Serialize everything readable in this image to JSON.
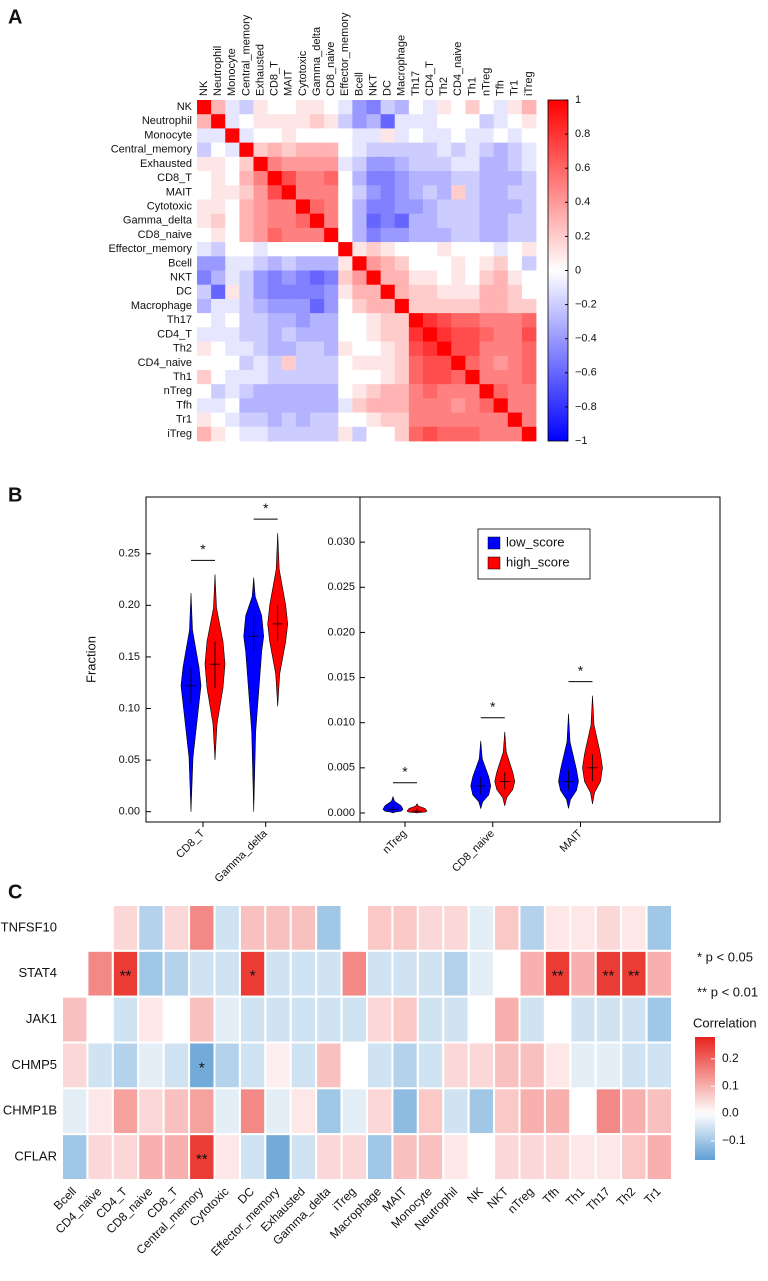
{
  "chart_data": [
    {
      "type": "heatmap",
      "panel": "A",
      "rows": [
        "NK",
        "Neutrophil",
        "Monocyte",
        "Central_memory",
        "Exhausted",
        "CD8_T",
        "MAIT",
        "Cytotoxic",
        "Gamma_delta",
        "CD8_naive",
        "Effector_memory",
        "Bcell",
        "NKT",
        "DC",
        "Macrophage",
        "Th17",
        "CD4_T",
        "Th2",
        "CD4_naive",
        "Th1",
        "nTreg",
        "Tfh",
        "Tr1",
        "iTreg"
      ],
      "columns": [
        "NK",
        "Neutrophil",
        "Monocyte",
        "Central_memory",
        "Exhausted",
        "CD8_T",
        "MAIT",
        "Cytotoxic",
        "Gamma_delta",
        "CD8_naive",
        "Effector_memory",
        "Bcell",
        "NKT",
        "DC",
        "Macrophage",
        "Th17",
        "CD4_T",
        "Th2",
        "CD4_naive",
        "Th1",
        "nTreg",
        "Tfh",
        "Tr1",
        "iTreg"
      ],
      "values": [
        [
          1,
          0.3,
          -0.1,
          -0.2,
          0.1,
          0,
          0,
          0.1,
          0.1,
          0,
          -0.1,
          -0.4,
          -0.5,
          -0.2,
          -0.3,
          0,
          -0.1,
          0.1,
          0,
          0.2,
          0,
          -0.1,
          0.1,
          0.3
        ],
        [
          0.3,
          1,
          -0.1,
          0,
          0.1,
          0.1,
          0.1,
          0.1,
          0.2,
          0.1,
          -0.2,
          -0.4,
          -0.3,
          -0.6,
          -0.1,
          -0.1,
          -0.1,
          0,
          0,
          0,
          -0.2,
          -0.1,
          0,
          0.1
        ],
        [
          -0.1,
          -0.1,
          1,
          -0.1,
          0,
          0,
          0.1,
          0,
          0,
          0,
          0,
          -0.1,
          -0.1,
          0.1,
          -0.1,
          0,
          -0.1,
          -0.1,
          0,
          -0.1,
          -0.1,
          0,
          -0.1,
          0
        ],
        [
          -0.2,
          0,
          -0.1,
          1,
          0.2,
          0.3,
          0.2,
          0.3,
          0.3,
          0.3,
          0,
          -0.1,
          -0.2,
          -0.2,
          -0.2,
          -0.2,
          -0.2,
          -0.1,
          -0.2,
          -0.1,
          -0.2,
          -0.3,
          -0.2,
          -0.1
        ],
        [
          0.1,
          0.1,
          0,
          0.2,
          1,
          0.5,
          0.4,
          0.4,
          0.4,
          0.4,
          -0.1,
          -0.2,
          -0.4,
          -0.4,
          -0.3,
          -0.2,
          -0.2,
          -0.2,
          -0.1,
          -0.1,
          -0.3,
          -0.3,
          -0.2,
          -0.1
        ],
        [
          0,
          0.1,
          0,
          0.3,
          0.5,
          1,
          0.7,
          0.5,
          0.5,
          0.6,
          0,
          -0.3,
          -0.5,
          -0.5,
          -0.4,
          -0.3,
          -0.3,
          -0.3,
          -0.2,
          -0.2,
          -0.3,
          -0.3,
          -0.3,
          -0.2
        ],
        [
          0,
          0.1,
          0.1,
          0.2,
          0.4,
          0.7,
          1,
          0.5,
          0.5,
          0.5,
          0,
          -0.2,
          -0.4,
          -0.5,
          -0.4,
          -0.3,
          -0.2,
          -0.3,
          0.2,
          -0.2,
          -0.3,
          -0.3,
          -0.2,
          -0.2
        ],
        [
          0.1,
          0.1,
          0,
          0.3,
          0.4,
          0.5,
          0.5,
          1,
          0.6,
          0.5,
          0,
          -0.3,
          -0.5,
          -0.5,
          -0.4,
          -0.4,
          -0.3,
          -0.2,
          -0.2,
          -0.2,
          -0.3,
          -0.3,
          -0.3,
          -0.2
        ],
        [
          0.1,
          0.2,
          0,
          0.3,
          0.4,
          0.5,
          0.5,
          0.6,
          1,
          0.5,
          0,
          -0.3,
          -0.6,
          -0.5,
          -0.6,
          -0.3,
          -0.3,
          -0.2,
          -0.2,
          -0.2,
          -0.3,
          -0.3,
          -0.2,
          -0.2
        ],
        [
          0,
          0.1,
          0,
          0.3,
          0.4,
          0.6,
          0.5,
          0.5,
          0.5,
          1,
          0,
          -0.3,
          -0.5,
          -0.4,
          -0.4,
          -0.3,
          -0.3,
          -0.3,
          -0.2,
          -0.2,
          -0.3,
          -0.3,
          -0.2,
          -0.2
        ],
        [
          -0.1,
          -0.2,
          0,
          0,
          -0.1,
          0,
          0,
          0,
          0,
          0,
          1,
          0.1,
          0.2,
          0.1,
          0,
          0,
          0,
          0.1,
          0,
          0,
          0,
          -0.1,
          0,
          0.1
        ],
        [
          -0.4,
          -0.4,
          -0.1,
          -0.1,
          -0.2,
          -0.3,
          -0.2,
          -0.3,
          -0.3,
          -0.3,
          0.1,
          1,
          0.4,
          0.3,
          0.2,
          0,
          0,
          0,
          0.1,
          0,
          0.1,
          0.2,
          0,
          -0.2
        ],
        [
          -0.5,
          -0.3,
          -0.1,
          -0.2,
          -0.4,
          -0.5,
          -0.4,
          -0.5,
          -0.6,
          -0.5,
          0.2,
          0.4,
          1,
          0.3,
          0.3,
          0.1,
          0.1,
          0,
          0.1,
          0,
          0.2,
          0.3,
          0.1,
          0
        ],
        [
          -0.2,
          -0.6,
          0.1,
          -0.2,
          -0.4,
          -0.5,
          -0.5,
          -0.5,
          -0.5,
          -0.4,
          0.1,
          0.3,
          0.3,
          1,
          0.3,
          0.2,
          0.2,
          0.1,
          0.1,
          0.1,
          0.3,
          0.3,
          0.2,
          0
        ],
        [
          -0.3,
          -0.1,
          -0.1,
          -0.2,
          -0.3,
          -0.4,
          -0.4,
          -0.4,
          -0.6,
          -0.4,
          0,
          0.2,
          0.3,
          0.3,
          1,
          0.2,
          0.2,
          0.2,
          0.2,
          0.2,
          0.3,
          0.3,
          0.2,
          0.2
        ],
        [
          0,
          -0.1,
          0,
          -0.2,
          -0.2,
          -0.3,
          -0.3,
          -0.4,
          -0.3,
          -0.3,
          0,
          0,
          0.1,
          0.2,
          0.2,
          1,
          0.8,
          0.7,
          0.6,
          0.6,
          0.5,
          0.5,
          0.5,
          0.6
        ],
        [
          -0.1,
          -0.1,
          -0.1,
          -0.2,
          -0.2,
          -0.3,
          -0.2,
          -0.3,
          -0.3,
          -0.3,
          0,
          0,
          0.1,
          0.2,
          0.2,
          0.8,
          1,
          0.8,
          0.7,
          0.7,
          0.6,
          0.5,
          0.5,
          0.7
        ],
        [
          0.1,
          0,
          -0.1,
          -0.1,
          -0.2,
          -0.3,
          -0.3,
          -0.2,
          -0.2,
          -0.3,
          0.1,
          0,
          0,
          0.1,
          0.2,
          0.7,
          0.8,
          1,
          0.7,
          0.7,
          0.5,
          0.5,
          0.5,
          0.6
        ],
        [
          0,
          0,
          0,
          -0.2,
          -0.1,
          -0.2,
          0.2,
          -0.2,
          -0.2,
          -0.2,
          0,
          0.1,
          0.1,
          0.1,
          0.2,
          0.6,
          0.7,
          0.7,
          1,
          0.6,
          0.5,
          0.4,
          0.5,
          0.6
        ],
        [
          0.2,
          0,
          -0.1,
          -0.1,
          -0.1,
          -0.2,
          -0.2,
          -0.2,
          -0.2,
          -0.2,
          0,
          0,
          0,
          0.1,
          0.2,
          0.6,
          0.7,
          0.7,
          0.6,
          1,
          0.5,
          0.5,
          0.5,
          0.6
        ],
        [
          0,
          -0.2,
          -0.1,
          -0.2,
          -0.3,
          -0.3,
          -0.3,
          -0.3,
          -0.3,
          -0.3,
          0,
          0.1,
          0.2,
          0.3,
          0.3,
          0.5,
          0.6,
          0.5,
          0.5,
          0.5,
          1,
          0.6,
          0.5,
          0.5
        ],
        [
          -0.1,
          -0.1,
          0,
          -0.3,
          -0.3,
          -0.3,
          -0.3,
          -0.3,
          -0.3,
          -0.3,
          -0.1,
          0.2,
          0.3,
          0.3,
          0.3,
          0.5,
          0.5,
          0.5,
          0.4,
          0.5,
          0.6,
          1,
          0.5,
          0.5
        ],
        [
          0.1,
          0,
          -0.1,
          -0.2,
          -0.2,
          -0.3,
          -0.2,
          -0.3,
          -0.2,
          -0.2,
          0,
          0,
          0.1,
          0.2,
          0.2,
          0.5,
          0.5,
          0.5,
          0.5,
          0.5,
          0.5,
          0.5,
          1,
          0.5
        ],
        [
          0.3,
          0.1,
          0,
          -0.1,
          -0.1,
          -0.2,
          -0.2,
          -0.2,
          -0.2,
          -0.2,
          0.1,
          -0.2,
          0,
          0,
          0.2,
          0.6,
          0.7,
          0.6,
          0.6,
          0.6,
          0.5,
          0.5,
          0.5,
          1
        ]
      ],
      "zlim": [
        -1,
        1
      ],
      "zticks": [
        1,
        0.8,
        0.6,
        0.4,
        0.2,
        0,
        {
          "value": -0.2,
          "label": "−0.2"
        },
        {
          "value": -0.4,
          "label": "−0.4"
        },
        {
          "value": -0.6,
          "label": "−0.6"
        },
        {
          "value": -0.8,
          "label": "−0.8"
        },
        {
          "value": -1,
          "label": "−1"
        }
      ],
      "colors": [
        "#0000ff",
        "#ffffff",
        "#ff0000"
      ]
    },
    {
      "type": "violin",
      "panel": "B",
      "ylabel": "Fraction",
      "categories": [
        "CD8_T",
        "Gamma_delta"
      ],
      "series": [
        {
          "color": "#0000ff",
          "min": [
            0,
            0
          ],
          "q1": [
            0.105,
            0.155
          ],
          "median": [
            0.122,
            0.17
          ],
          "q3": [
            0.14,
            0.19
          ],
          "max": [
            0.212,
            0.227
          ]
        },
        {
          "color": "#ff0000",
          "min": [
            0.05,
            0.102
          ],
          "q1": [
            0.12,
            0.165
          ],
          "median": [
            0.143,
            0.182
          ],
          "q3": [
            0.165,
            0.2
          ],
          "max": [
            0.23,
            0.27
          ]
        }
      ],
      "annotations": [
        "*",
        "*"
      ],
      "ylim": [
        -0.01,
        0.305
      ],
      "yticks": [
        {
          "value": 0,
          "label": "0.00"
        },
        0.05,
        {
          "value": 0.1,
          "label": "0.10"
        },
        0.15,
        {
          "value": 0.2,
          "label": "0.20"
        },
        0.25
      ]
    },
    {
      "type": "violin",
      "categories": [
        "nTreg",
        "CD8_naive",
        "MAIT"
      ],
      "series": [
        {
          "name": "low_score",
          "color": "#0000ff",
          "min": [
            0,
            0.0005,
            0.0005
          ],
          "q1": [
            0.0002,
            0.002,
            0.0025
          ],
          "median": [
            0.0004,
            0.003,
            0.0035
          ],
          "q3": [
            0.0008,
            0.004,
            0.0048
          ],
          "max": [
            0.0018,
            0.008,
            0.011
          ]
        },
        {
          "name": "high_score",
          "color": "#ff0000",
          "min": [
            0,
            0.0008,
            0.001
          ],
          "q1": [
            0.0001,
            0.0026,
            0.0035
          ],
          "median": [
            0.0002,
            0.0035,
            0.005
          ],
          "q3": [
            0.0005,
            0.0045,
            0.0065
          ],
          "max": [
            0.001,
            0.009,
            0.013
          ]
        }
      ],
      "annotations": [
        "*",
        "*",
        "*"
      ],
      "ylim": [
        -0.001,
        0.035
      ],
      "yticks": [
        {
          "value": 0,
          "label": "0.000"
        },
        0.005,
        {
          "value": 0.01,
          "label": "0.010"
        },
        0.015,
        {
          "value": 0.02,
          "label": "0.020"
        },
        0.025,
        {
          "value": 0.03,
          "label": "0.030"
        }
      ],
      "legend": "upper-right"
    },
    {
      "type": "heatmap",
      "panel": "C",
      "rows": [
        "TNFSF10",
        "STAT4",
        "JAK1",
        "CHMP5",
        "CHMP1B",
        "CFLAR"
      ],
      "columns": [
        "Bcell",
        "CD4_naive",
        "CD4_T",
        "CD8_naive",
        "CD8_T",
        "Central_memory",
        "Cytotoxic",
        "DC",
        "Effector_memory",
        "Exhausted",
        "Gamma_delta",
        "iTreg",
        "Macrophage",
        "MAIT",
        "Monocyte",
        "Neutrophil",
        "NK",
        "NKT",
        "nTreg",
        "Tfh",
        "Th1",
        "Th17",
        "Th2",
        "Tr1"
      ],
      "values": [
        [
          0,
          0,
          0.05,
          -0.08,
          0.05,
          0.15,
          -0.05,
          0.08,
          0.08,
          0.08,
          -0.1,
          0,
          0.07,
          0.07,
          0.05,
          0.05,
          -0.03,
          0.07,
          -0.08,
          0.03,
          0.03,
          0.05,
          0.03,
          -0.1
        ],
        [
          0,
          0.15,
          0.25,
          -0.1,
          -0.08,
          -0.05,
          -0.05,
          0.25,
          -0.05,
          -0.05,
          -0.05,
          0.15,
          -0.05,
          -0.05,
          -0.05,
          -0.08,
          -0.03,
          0,
          0.1,
          0.25,
          0.1,
          0.25,
          0.25,
          0.1
        ],
        [
          0.08,
          0,
          -0.05,
          0.03,
          0,
          0.08,
          -0.03,
          -0.05,
          -0.05,
          -0.05,
          -0.05,
          -0.05,
          0.05,
          0.07,
          -0.05,
          -0.05,
          0,
          0.1,
          -0.05,
          0,
          -0.05,
          -0.05,
          -0.05,
          -0.1
        ],
        [
          0.05,
          -0.05,
          -0.08,
          -0.03,
          -0.05,
          -0.15,
          -0.08,
          -0.05,
          0.02,
          -0.05,
          0.08,
          0,
          -0.05,
          -0.08,
          -0.05,
          0.05,
          0.05,
          0.08,
          0.08,
          0.03,
          -0.03,
          -0.03,
          -0.05,
          -0.05
        ],
        [
          -0.03,
          0.03,
          0.12,
          0.05,
          0.08,
          0.12,
          -0.03,
          0.15,
          -0.03,
          0.03,
          -0.1,
          -0.03,
          0.05,
          -0.12,
          0.07,
          -0.05,
          -0.1,
          0.07,
          0.1,
          0.1,
          0,
          0.15,
          0.1,
          0.08
        ],
        [
          -0.1,
          0.05,
          0.05,
          0.1,
          0.1,
          0.25,
          0.03,
          -0.05,
          -0.15,
          -0.05,
          0.05,
          0.05,
          -0.1,
          0.08,
          0.08,
          0.03,
          0,
          0.05,
          0.05,
          0.05,
          0.03,
          0.03,
          0.07,
          0.1
        ]
      ],
      "stars": [
        [
          null,
          null,
          null,
          null,
          null,
          null,
          null,
          null,
          null,
          null,
          null,
          null,
          null,
          null,
          null,
          null,
          null,
          null,
          null,
          null,
          null,
          null,
          null,
          null
        ],
        [
          null,
          null,
          "**",
          null,
          null,
          null,
          null,
          "*",
          null,
          null,
          null,
          null,
          null,
          null,
          null,
          null,
          null,
          null,
          null,
          "**",
          null,
          "**",
          "**",
          null
        ],
        [
          null,
          null,
          null,
          null,
          null,
          null,
          null,
          null,
          null,
          null,
          null,
          null,
          null,
          null,
          null,
          null,
          null,
          null,
          null,
          null,
          null,
          null,
          null,
          null
        ],
        [
          null,
          null,
          null,
          null,
          null,
          "*",
          null,
          null,
          null,
          null,
          null,
          null,
          null,
          null,
          null,
          null,
          null,
          null,
          null,
          null,
          null,
          null,
          null,
          null
        ],
        [
          null,
          null,
          null,
          null,
          null,
          null,
          null,
          null,
          null,
          null,
          null,
          null,
          null,
          null,
          null,
          null,
          null,
          null,
          null,
          null,
          null,
          null,
          null,
          null
        ],
        [
          null,
          null,
          null,
          null,
          null,
          "**",
          null,
          null,
          null,
          null,
          null,
          null,
          null,
          null,
          null,
          null,
          null,
          null,
          null,
          null,
          null,
          null,
          null,
          null
        ]
      ],
      "notes": [
        "* p < 0.05",
        "** p < 0.01"
      ],
      "colorbar_title": "Correlation",
      "zlim": [
        -0.17,
        0.28
      ],
      "zticks": [
        0.2,
        0.1,
        {
          "value": 0,
          "label": "0.0"
        },
        {
          "value": -0.1,
          "label": "−0.1"
        }
      ],
      "colors": [
        "#5f9fd4",
        "#ffffff",
        "#e8231d"
      ]
    }
  ]
}
